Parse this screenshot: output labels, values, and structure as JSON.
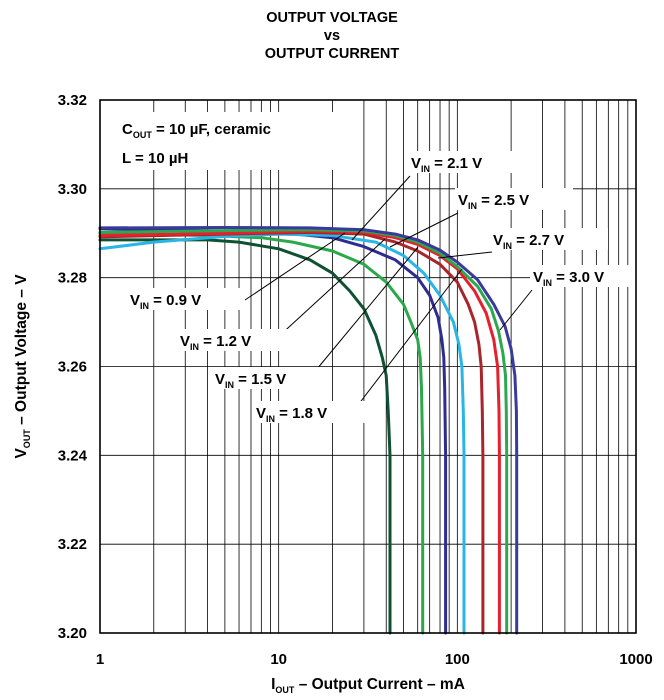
{
  "chart_data": {
    "type": "line",
    "title": [
      "OUTPUT VOLTAGE",
      "vs",
      "OUTPUT CURRENT"
    ],
    "xlabel": {
      "main": "I",
      "sub": "OUT",
      "rest": " – Output Current – mA"
    },
    "ylabel": {
      "main": "V",
      "sub": "OUT",
      "rest": " – Output Voltage – V"
    },
    "x_scale": "log",
    "xlim": [
      1,
      1000
    ],
    "ylim": [
      3.2,
      3.32
    ],
    "x_ticks": [
      1,
      10,
      100,
      1000
    ],
    "x_tick_labels": [
      "1",
      "10",
      "100",
      "1000"
    ],
    "y_ticks": [
      3.2,
      3.22,
      3.24,
      3.26,
      3.28,
      3.3,
      3.32
    ],
    "y_tick_labels": [
      "3.20",
      "3.22",
      "3.24",
      "3.26",
      "3.28",
      "3.30",
      "3.32"
    ],
    "grid": true,
    "conditions": [
      {
        "main": "C",
        "sub": "OUT",
        "rest": " = 10 µF, ceramic"
      },
      {
        "main": "L = 10 µH",
        "sub": "",
        "rest": ""
      }
    ],
    "series": [
      {
        "name": "0.9 V",
        "color": "#0e5233",
        "points": [
          [
            1,
            3.2885
          ],
          [
            2,
            3.2885
          ],
          [
            4,
            3.2885
          ],
          [
            6,
            3.288
          ],
          [
            10,
            3.2865
          ],
          [
            15,
            3.284
          ],
          [
            20,
            3.281
          ],
          [
            25,
            3.277
          ],
          [
            30,
            3.273
          ],
          [
            35,
            3.267
          ],
          [
            38,
            3.262
          ],
          [
            40,
            3.258
          ],
          [
            41,
            3.25
          ],
          [
            42,
            3.24
          ],
          [
            42,
            3.2
          ]
        ]
      },
      {
        "name": "1.2 V",
        "color": "#2aa84a",
        "points": [
          [
            1,
            3.29
          ],
          [
            4,
            3.2895
          ],
          [
            8,
            3.289
          ],
          [
            12,
            3.288
          ],
          [
            20,
            3.286
          ],
          [
            30,
            3.283
          ],
          [
            40,
            3.279
          ],
          [
            50,
            3.274
          ],
          [
            55,
            3.27
          ],
          [
            60,
            3.266
          ],
          [
            62,
            3.262
          ],
          [
            63,
            3.255
          ],
          [
            64,
            3.24
          ],
          [
            64,
            3.2
          ]
        ]
      },
      {
        "name": "1.5 V",
        "color": "#2d2d8f",
        "points": [
          [
            1,
            3.291
          ],
          [
            5,
            3.2905
          ],
          [
            10,
            3.2902
          ],
          [
            20,
            3.289
          ],
          [
            30,
            3.287
          ],
          [
            45,
            3.284
          ],
          [
            60,
            3.28
          ],
          [
            70,
            3.276
          ],
          [
            78,
            3.271
          ],
          [
            82,
            3.266
          ],
          [
            84,
            3.262
          ],
          [
            85,
            3.255
          ],
          [
            86,
            3.24
          ],
          [
            86,
            3.2
          ]
        ]
      },
      {
        "name": "1.8 V",
        "color": "#29b6e6",
        "points": [
          [
            1,
            3.2865
          ],
          [
            2,
            3.288
          ],
          [
            5,
            3.2893
          ],
          [
            10,
            3.2898
          ],
          [
            20,
            3.2895
          ],
          [
            35,
            3.288
          ],
          [
            50,
            3.285
          ],
          [
            65,
            3.281
          ],
          [
            80,
            3.276
          ],
          [
            95,
            3.27
          ],
          [
            102,
            3.265
          ],
          [
            106,
            3.26
          ],
          [
            108,
            3.25
          ],
          [
            109,
            3.24
          ],
          [
            109,
            3.2
          ]
        ]
      },
      {
        "name": "2.1 V",
        "color": "#a8262b",
        "points": [
          [
            1,
            3.2892
          ],
          [
            5,
            3.2898
          ],
          [
            15,
            3.2902
          ],
          [
            30,
            3.2898
          ],
          [
            45,
            3.288
          ],
          [
            60,
            3.286
          ],
          [
            80,
            3.283
          ],
          [
            100,
            3.279
          ],
          [
            115,
            3.274
          ],
          [
            125,
            3.27
          ],
          [
            132,
            3.265
          ],
          [
            136,
            3.26
          ],
          [
            138,
            3.25
          ],
          [
            139,
            3.24
          ],
          [
            139,
            3.2
          ]
        ]
      },
      {
        "name": "2.5 V",
        "color": "#e6202c",
        "points": [
          [
            1,
            3.2895
          ],
          [
            5,
            3.29
          ],
          [
            15,
            3.2905
          ],
          [
            30,
            3.2902
          ],
          [
            45,
            3.289
          ],
          [
            60,
            3.2875
          ],
          [
            80,
            3.285
          ],
          [
            100,
            3.282
          ],
          [
            125,
            3.277
          ],
          [
            145,
            3.272
          ],
          [
            160,
            3.266
          ],
          [
            168,
            3.26
          ],
          [
            171,
            3.25
          ],
          [
            172,
            3.24
          ],
          [
            172,
            3.2
          ]
        ]
      },
      {
        "name": "2.7 V",
        "color": "#2da84f",
        "points": [
          [
            1,
            3.2902
          ],
          [
            5,
            3.2906
          ],
          [
            15,
            3.2908
          ],
          [
            30,
            3.2905
          ],
          [
            45,
            3.2895
          ],
          [
            60,
            3.288
          ],
          [
            80,
            3.2855
          ],
          [
            100,
            3.2825
          ],
          [
            130,
            3.278
          ],
          [
            155,
            3.273
          ],
          [
            170,
            3.268
          ],
          [
            180,
            3.263
          ],
          [
            186,
            3.258
          ],
          [
            188,
            3.25
          ],
          [
            189,
            3.24
          ],
          [
            189,
            3.2
          ]
        ]
      },
      {
        "name": "3.0 V",
        "color": "#3a3a9c",
        "points": [
          [
            1,
            3.2912
          ],
          [
            5,
            3.2913
          ],
          [
            15,
            3.2912
          ],
          [
            30,
            3.2908
          ],
          [
            45,
            3.2898
          ],
          [
            60,
            3.2885
          ],
          [
            80,
            3.2862
          ],
          [
            100,
            3.2835
          ],
          [
            130,
            3.2795
          ],
          [
            160,
            3.274
          ],
          [
            185,
            3.269
          ],
          [
            200,
            3.264
          ],
          [
            210,
            3.258
          ],
          [
            214,
            3.25
          ],
          [
            215,
            3.24
          ],
          [
            215,
            3.2
          ]
        ]
      }
    ],
    "labels": [
      {
        "main": "V",
        "sub": "IN",
        "rest": " = 0.9 V",
        "series": "0.9 V"
      },
      {
        "main": "V",
        "sub": "IN",
        "rest": " = 1.2 V",
        "series": "1.2 V"
      },
      {
        "main": "V",
        "sub": "IN",
        "rest": " = 1.5 V",
        "series": "1.5 V"
      },
      {
        "main": "V",
        "sub": "IN",
        "rest": " = 1.8 V",
        "series": "1.8 V"
      },
      {
        "main": "V",
        "sub": "IN",
        "rest": " = 2.1 V",
        "series": "2.1 V"
      },
      {
        "main": "V",
        "sub": "IN",
        "rest": " = 2.5 V",
        "series": "2.5 V"
      },
      {
        "main": "V",
        "sub": "IN",
        "rest": " = 2.7 V",
        "series": "2.7 V"
      },
      {
        "main": "V",
        "sub": "IN",
        "rest": " = 3.0 V",
        "series": "3.0 V"
      }
    ]
  }
}
